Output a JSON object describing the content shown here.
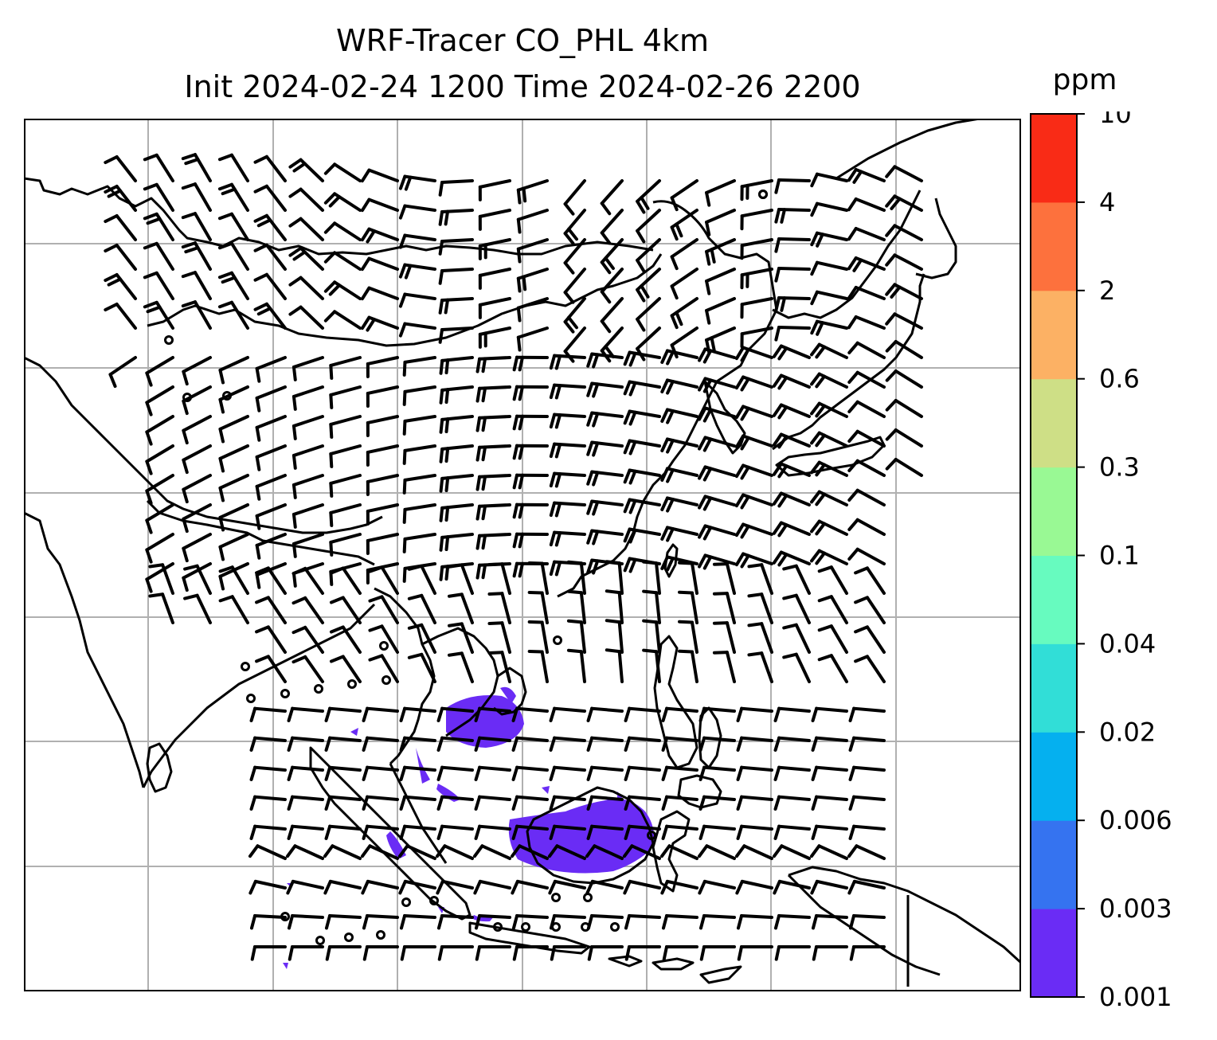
{
  "title": {
    "line1": "WRF-Tracer CO_PHL 4km",
    "line2": "Init 2024-02-24 1200 Time 2024-02-26 2200"
  },
  "colorbar": {
    "unit": "ppm",
    "levels": [
      "0.001",
      "0.003",
      "0.006",
      "0.02",
      "0.04",
      "0.1",
      "0.3",
      "0.6",
      "2",
      "4",
      "10"
    ],
    "colors": [
      "#6a2cf5",
      "#3573f0",
      "#05b0ef",
      "#31ded7",
      "#67fbbf",
      "#99f994",
      "#cedf86",
      "#fcb164",
      "#fd713d",
      "#f92b16"
    ]
  },
  "map": {
    "gridlines": true,
    "coastline_color": "#000000",
    "grid_color": "#b0b0b0",
    "tracer_color": "#6a2cf5",
    "wind_barbs": true
  }
}
